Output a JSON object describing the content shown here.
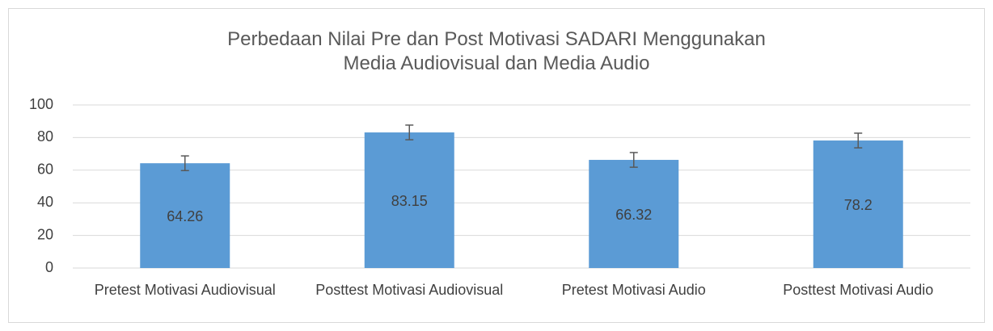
{
  "chart_data": {
    "type": "bar",
    "title": "Perbedaan Nilai Pre dan Post Motivasi SADARI Menggunakan Media Audiovisual dan Media Audio",
    "categories": [
      "Pretest Motivasi Audiovisual",
      "Posttest Motivasi Audiovisual",
      "Pretest Motivasi Audio",
      "Posttest Motivasi Audio"
    ],
    "values": [
      64.26,
      83.15,
      66.32,
      78.2
    ],
    "errors": [
      4.5,
      4.5,
      4.5,
      4.5
    ],
    "color": "#5b9bd5",
    "ylim": [
      0,
      100
    ],
    "yticks": [
      0,
      20,
      40,
      60,
      80,
      100
    ],
    "grid": true
  }
}
